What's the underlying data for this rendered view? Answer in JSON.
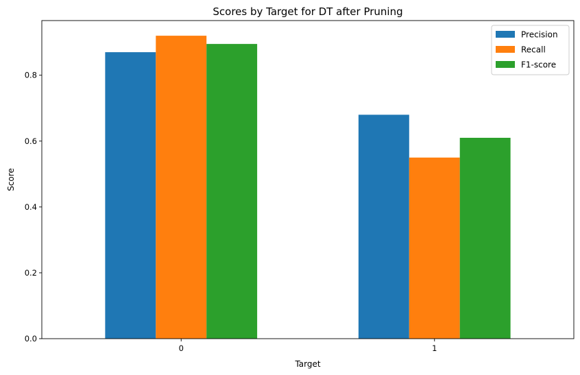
{
  "chart_data": {
    "type": "bar",
    "title": "Scores by Target for DT after Pruning",
    "xlabel": "Target",
    "ylabel": "Score",
    "categories": [
      "0",
      "1"
    ],
    "series": [
      {
        "name": "Precision",
        "color": "#1f77b4",
        "values": [
          0.87,
          0.68
        ]
      },
      {
        "name": "Recall",
        "color": "#ff7f0e",
        "values": [
          0.92,
          0.55
        ]
      },
      {
        "name": "F1-score",
        "color": "#2ca02c",
        "values": [
          0.895,
          0.61
        ]
      }
    ],
    "ylim": [
      0,
      0.966
    ],
    "yticks": [
      "0.0",
      "0.2",
      "0.4",
      "0.6",
      "0.8"
    ],
    "grid": false,
    "legend_position": "top-right"
  }
}
